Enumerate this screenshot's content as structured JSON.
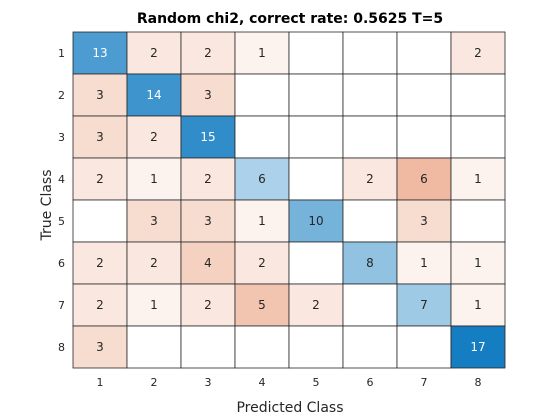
{
  "chart_data": {
    "type": "heatmap",
    "title": "Random chi2, correct rate: 0.5625 T=5",
    "xlabel": "Predicted Class",
    "ylabel": "True Class",
    "x_categories": [
      "1",
      "2",
      "3",
      "4",
      "5",
      "6",
      "7",
      "8"
    ],
    "y_categories": [
      "1",
      "2",
      "3",
      "4",
      "5",
      "6",
      "7",
      "8"
    ],
    "matrix": [
      [
        13,
        2,
        2,
        1,
        null,
        null,
        null,
        2
      ],
      [
        3,
        14,
        3,
        null,
        null,
        null,
        null,
        null
      ],
      [
        3,
        2,
        15,
        null,
        null,
        null,
        null,
        null
      ],
      [
        2,
        1,
        2,
        6,
        null,
        2,
        6,
        1
      ],
      [
        null,
        3,
        3,
        1,
        10,
        null,
        3,
        null
      ],
      [
        2,
        2,
        4,
        2,
        null,
        8,
        1,
        1
      ],
      [
        2,
        1,
        2,
        5,
        2,
        null,
        7,
        1
      ],
      [
        3,
        null,
        null,
        null,
        null,
        null,
        null,
        17
      ]
    ],
    "colors": {
      "diagonal_max": "#0072bd",
      "diagonal_min": "#ffffff",
      "offdiagonal_max": "#d95319",
      "offdiagonal_min": "#ffffff",
      "grid": "#262626"
    },
    "grid": true
  }
}
